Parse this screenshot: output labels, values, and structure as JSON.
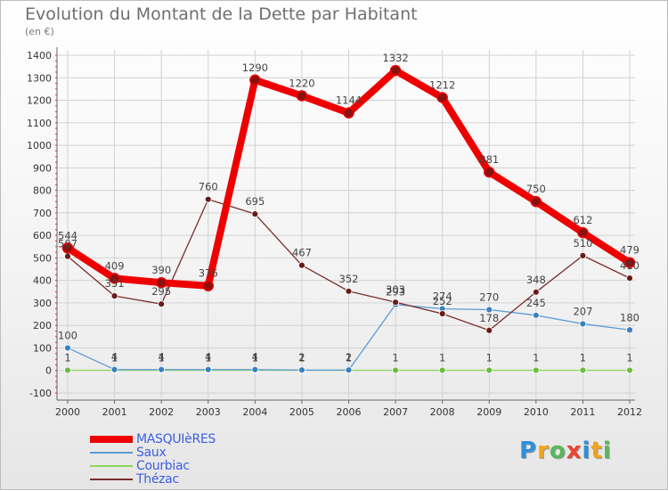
{
  "title": "Evolution du Montant de la Dette par Habitant",
  "subtitle": "(en €)",
  "logo": {
    "text": "Proxiti",
    "colors": [
      "#2f8fd8",
      "#f0a41c",
      "#5ab85a",
      "#e8452c",
      "#2f8fd8",
      "#f0a41c",
      "#5ab85a"
    ]
  },
  "chart_data": {
    "type": "line",
    "x": [
      "2000",
      "2001",
      "2002",
      "2003",
      "2004",
      "2005",
      "2006",
      "2007",
      "2008",
      "2009",
      "2010",
      "2011",
      "2012"
    ],
    "ylim": [
      -100,
      1400
    ],
    "yticks": [
      -100,
      0,
      100,
      200,
      300,
      400,
      500,
      600,
      700,
      800,
      900,
      1000,
      1100,
      1200,
      1300,
      1400
    ],
    "grid": true,
    "legend_position": "bottom-left",
    "series": [
      {
        "name": "MASQUIèRES",
        "color": "#ee0000",
        "values": [
          544,
          409,
          390,
          376,
          1290,
          1220,
          1144,
          1332,
          1212,
          881,
          750,
          612,
          479
        ],
        "labels": [
          "544",
          "409",
          "390",
          "376",
          "1290",
          "1220",
          "1144",
          "1332",
          "1212",
          "881",
          "750",
          "612",
          "479"
        ]
      },
      {
        "name": "Saux",
        "color": "#5b9bd5",
        "values": [
          100,
          4,
          4,
          4,
          4,
          2,
          2,
          293,
          274,
          270,
          245,
          207,
          180
        ],
        "labels": [
          "100",
          "4",
          "4",
          "4",
          "4",
          "2",
          "2",
          "293",
          "274",
          "270",
          "245",
          "207",
          "180"
        ]
      },
      {
        "name": "Courbiac",
        "color": "#8ed65a",
        "values": [
          1,
          1,
          1,
          1,
          1,
          1,
          1,
          1,
          1,
          1,
          1,
          1,
          1
        ],
        "labels": [
          "1",
          "1",
          "1",
          "1",
          "1",
          "1",
          "1",
          "1",
          "1",
          "1",
          "1",
          "1",
          "1"
        ]
      },
      {
        "name": "Thézac",
        "color": "#7a2e2e",
        "values": [
          507,
          331,
          295,
          760,
          695,
          467,
          352,
          303,
          252,
          178,
          348,
          510,
          410
        ],
        "labels": [
          "507",
          "331",
          "295",
          "760",
          "695",
          "467",
          "352",
          "303",
          "252",
          "178",
          "348",
          "510",
          "410"
        ]
      }
    ]
  }
}
